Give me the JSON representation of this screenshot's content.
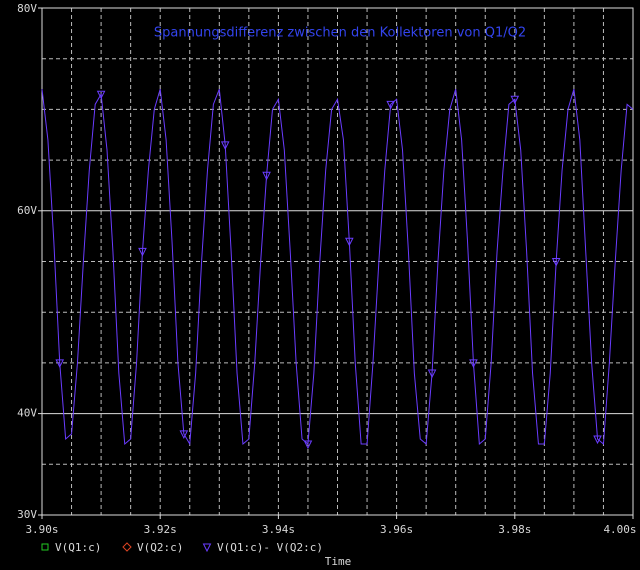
{
  "chart_data": {
    "type": "line",
    "title": "Spannungsdifferenz zwischen den Kollektoren von Q1/Q2",
    "xlabel": "Time",
    "xlim": [
      3.9,
      4.0
    ],
    "ylim": [
      30,
      80
    ],
    "xticks": [
      {
        "value": 3.9,
        "label": "3.90s"
      },
      {
        "value": 3.92,
        "label": "3.92s"
      },
      {
        "value": 3.94,
        "label": "3.94s"
      },
      {
        "value": 3.96,
        "label": "3.96s"
      },
      {
        "value": 3.98,
        "label": "3.98s"
      },
      {
        "value": 4.0,
        "label": "4.00s"
      }
    ],
    "yticks": [
      {
        "value": 30,
        "label": "30V"
      },
      {
        "value": 40,
        "label": "40V"
      },
      {
        "value": 60,
        "label": "60V"
      },
      {
        "value": 80,
        "label": "80V"
      }
    ],
    "xgrid": [
      3.905,
      3.91,
      3.915,
      3.925,
      3.93,
      3.935,
      3.945,
      3.95,
      3.955,
      3.965,
      3.97,
      3.975,
      3.985,
      3.99,
      3.995
    ],
    "ygrid": [
      35,
      45,
      50,
      55,
      65,
      70,
      75
    ],
    "grid": true,
    "x": [
      3.9,
      3.901,
      3.902,
      3.903,
      3.904,
      3.905,
      3.906,
      3.907,
      3.908,
      3.909,
      3.91,
      3.911,
      3.912,
      3.913,
      3.914,
      3.915,
      3.916,
      3.917,
      3.918,
      3.919,
      3.92,
      3.921,
      3.922,
      3.923,
      3.924,
      3.925,
      3.926,
      3.927,
      3.928,
      3.929,
      3.93,
      3.931,
      3.932,
      3.933,
      3.934,
      3.935,
      3.936,
      3.937,
      3.938,
      3.939,
      3.94,
      3.941,
      3.942,
      3.943,
      3.944,
      3.945,
      3.946,
      3.947,
      3.948,
      3.949,
      3.95,
      3.951,
      3.952,
      3.953,
      3.954,
      3.955,
      3.956,
      3.957,
      3.958,
      3.959,
      3.96,
      3.961,
      3.962,
      3.963,
      3.964,
      3.965,
      3.966,
      3.967,
      3.968,
      3.969,
      3.97,
      3.971,
      3.972,
      3.973,
      3.974,
      3.975,
      3.976,
      3.977,
      3.978,
      3.979,
      3.98,
      3.981,
      3.982,
      3.983,
      3.984,
      3.985,
      3.986,
      3.987,
      3.988,
      3.989,
      3.99,
      3.991,
      3.992,
      3.993,
      3.994,
      3.995,
      3.996,
      3.997,
      3.998,
      3.999,
      4.0
    ],
    "series": [
      {
        "name": "V(Q1:c)",
        "color": "#22cc22",
        "marker": "square"
      },
      {
        "name": "V(Q2:c)",
        "color": "#dd4422",
        "marker": "diamond"
      },
      {
        "name": "V(Q1:c)- V(Q2:c)",
        "color": "#6a3cff",
        "marker": "triangle",
        "values": [
          72,
          67,
          57,
          45,
          37.5,
          38,
          45,
          55,
          64,
          70.5,
          71.5,
          66,
          56,
          44,
          37,
          37.5,
          45,
          56,
          64,
          70,
          72,
          67,
          57,
          45,
          38,
          37,
          44,
          55,
          64,
          70.5,
          72,
          66.5,
          56,
          44,
          37,
          37.5,
          45,
          55,
          63.5,
          70,
          71,
          66,
          56,
          45,
          37.5,
          37,
          44,
          55,
          64,
          70,
          71,
          67,
          57,
          45,
          37,
          37,
          45,
          55,
          64,
          70.5,
          71,
          66,
          56,
          44,
          37.5,
          37,
          44,
          55,
          64,
          70,
          72,
          67,
          57,
          45,
          37,
          37.5,
          45,
          56,
          64,
          70.5,
          71,
          66,
          56,
          44,
          37,
          37,
          44,
          55,
          64,
          70,
          72,
          67,
          56,
          45,
          37.5,
          37,
          45,
          55,
          64,
          70.5,
          70
        ]
      }
    ]
  }
}
